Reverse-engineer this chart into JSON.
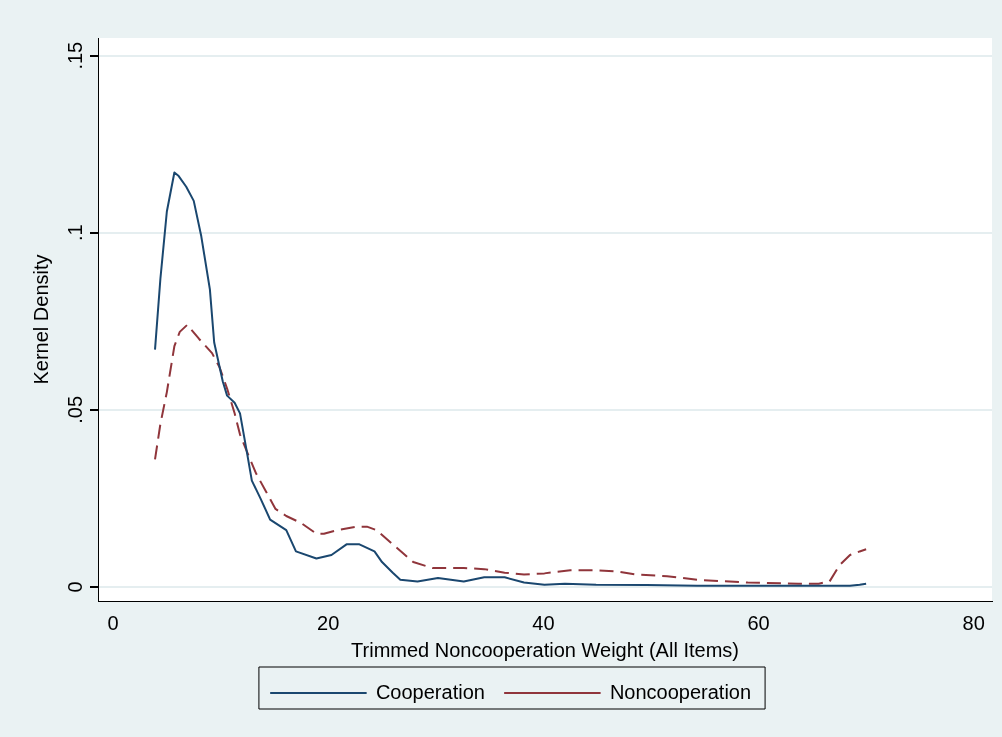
{
  "chart_data": {
    "type": "line",
    "xlabel": "Trimmed Noncooperation Weight (All Items)",
    "ylabel": "Kernel Density",
    "xlim": [
      -1.4,
      81.7
    ],
    "xticks": [
      0,
      20,
      40,
      60,
      80
    ],
    "ylim": [
      -0.004,
      0.155
    ],
    "yticks": [
      {
        "value": 0,
        "label": "0"
      },
      {
        "value": 0.05,
        "label": ".05"
      },
      {
        "value": 0.1,
        "label": ".1"
      },
      {
        "value": 0.15,
        "label": ".15"
      }
    ],
    "grid": "y",
    "legend": "bottom",
    "marker": "none",
    "series": [
      {
        "name": "Cooperation",
        "color": "#1a476f",
        "line_style": "solid",
        "x": [
          3.9,
          4.4,
          5.0,
          5.7,
          6.1,
          6.8,
          7.5,
          8.2,
          9.0,
          9.4,
          10.2,
          10.6,
          11.3,
          11.8,
          12.5,
          12.9,
          13.7,
          14.6,
          16.1,
          17.0,
          18.9,
          20.3,
          21.7,
          22.9,
          24.3,
          25.0,
          26.0,
          26.7,
          28.3,
          30.2,
          32.6,
          34.5,
          36.4,
          38.2,
          40.1,
          42.0,
          44.9,
          49.6,
          54.3,
          60,
          65.6,
          68.5,
          69.4,
          70
        ],
        "values": [
          0.067,
          0.087,
          0.106,
          0.117,
          0.116,
          0.113,
          0.109,
          0.099,
          0.084,
          0.069,
          0.058,
          0.054,
          0.052,
          0.049,
          0.037,
          0.03,
          0.025,
          0.019,
          0.016,
          0.01,
          0.008,
          0.009,
          0.012,
          0.012,
          0.01,
          0.007,
          0.004,
          0.002,
          0.0015,
          0.0025,
          0.0015,
          0.0027,
          0.0027,
          0.0012,
          0.0006,
          0.0009,
          0.0006,
          0.0005,
          0.0003,
          0.0003,
          0.0003,
          0.0003,
          0.0006,
          0.0009
        ]
      },
      {
        "name": "Noncooperation",
        "color": "#90353b",
        "line_style": "dashed",
        "x": [
          3.9,
          4.4,
          5.0,
          5.7,
          6.2,
          6.9,
          8.0,
          9.2,
          9.9,
          10.6,
          11.3,
          11.8,
          12.6,
          13.3,
          14.2,
          15.1,
          16.1,
          17.5,
          18.9,
          19.6,
          20.8,
          22.7,
          23.6,
          24.5,
          26.0,
          27.9,
          29.7,
          32.6,
          34.5,
          36.4,
          38.2,
          40.1,
          42.5,
          44.9,
          46.7,
          48.6,
          51.5,
          54.3,
          59,
          63.7,
          65.6,
          66.6,
          67.5,
          68.5,
          69.4,
          70
        ],
        "values": [
          0.036,
          0.046,
          0.055,
          0.068,
          0.072,
          0.074,
          0.07,
          0.066,
          0.062,
          0.056,
          0.049,
          0.043,
          0.037,
          0.032,
          0.027,
          0.022,
          0.02,
          0.018,
          0.015,
          0.015,
          0.016,
          0.017,
          0.017,
          0.016,
          0.012,
          0.007,
          0.0053,
          0.0053,
          0.005,
          0.004,
          0.0035,
          0.0038,
          0.0047,
          0.0047,
          0.0044,
          0.0035,
          0.003,
          0.002,
          0.0012,
          0.0009,
          0.0009,
          0.0015,
          0.006,
          0.009,
          0.01,
          0.0106
        ]
      }
    ]
  }
}
